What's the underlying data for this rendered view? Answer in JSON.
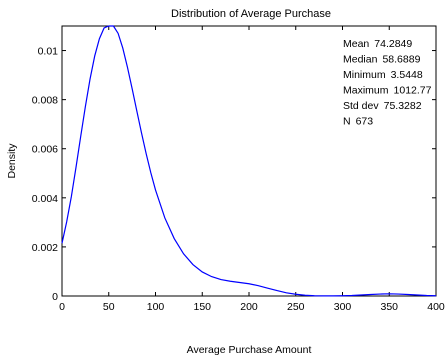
{
  "chart_data": {
    "type": "line",
    "title": "Distribution of Average Purchase",
    "xlabel": "Average Purchase Amount",
    "ylabel": "Density",
    "xlim": [
      0,
      400
    ],
    "ylim": [
      0,
      0.011
    ],
    "xticks": [
      0,
      50,
      100,
      150,
      200,
      250,
      300,
      350,
      400
    ],
    "yticks": [
      0,
      0.002,
      0.004,
      0.006,
      0.008,
      0.01
    ],
    "xtick_labels": [
      "0",
      "50",
      "100",
      "150",
      "200",
      "250",
      "300",
      "350",
      "400"
    ],
    "ytick_labels": [
      "0",
      "0.002",
      "0.004",
      "0.006",
      "0.008",
      "0.01"
    ],
    "grid": false,
    "line_color": "#0000ff",
    "series": [
      {
        "x": [
          0,
          5,
          10,
          15,
          20,
          25,
          30,
          35,
          40,
          45,
          50,
          55,
          60,
          65,
          70,
          75,
          80,
          85,
          90,
          95,
          100,
          110,
          120,
          130,
          140,
          150,
          160,
          170,
          180,
          190,
          200,
          210,
          220,
          230,
          240,
          250,
          260,
          270,
          280,
          290,
          300,
          310,
          320,
          330,
          340,
          350,
          360,
          370,
          380,
          390,
          400
        ],
        "y": [
          0.00215,
          0.00302,
          0.00405,
          0.00525,
          0.0065,
          0.00772,
          0.00884,
          0.00978,
          0.01048,
          0.01092,
          0.01112,
          0.01103,
          0.0107,
          0.0101,
          0.00932,
          0.00845,
          0.00754,
          0.00665,
          0.0058,
          0.00502,
          0.00432,
          0.00318,
          0.00234,
          0.00172,
          0.00128,
          0.00098,
          0.00079,
          0.00067,
          0.0006,
          0.00055,
          0.0005,
          0.00042,
          0.00032,
          0.00022,
          0.00013,
          7e-05,
          3e-05,
          1e-05,
          5e-06,
          5e-06,
          1e-05,
          2e-05,
          4e-05,
          6e-05,
          8e-05,
          9e-05,
          8e-05,
          6e-05,
          4e-05,
          2e-05,
          1e-05
        ]
      }
    ],
    "stats": [
      {
        "label": "Mean",
        "value": "74.2849"
      },
      {
        "label": "Median",
        "value": "58.6889"
      },
      {
        "label": "Minimum",
        "value": "3.5448"
      },
      {
        "label": "Maximum",
        "value": "1012.77"
      },
      {
        "label": "Std dev",
        "value": "75.3282"
      },
      {
        "label": "N",
        "value": "673"
      }
    ]
  }
}
